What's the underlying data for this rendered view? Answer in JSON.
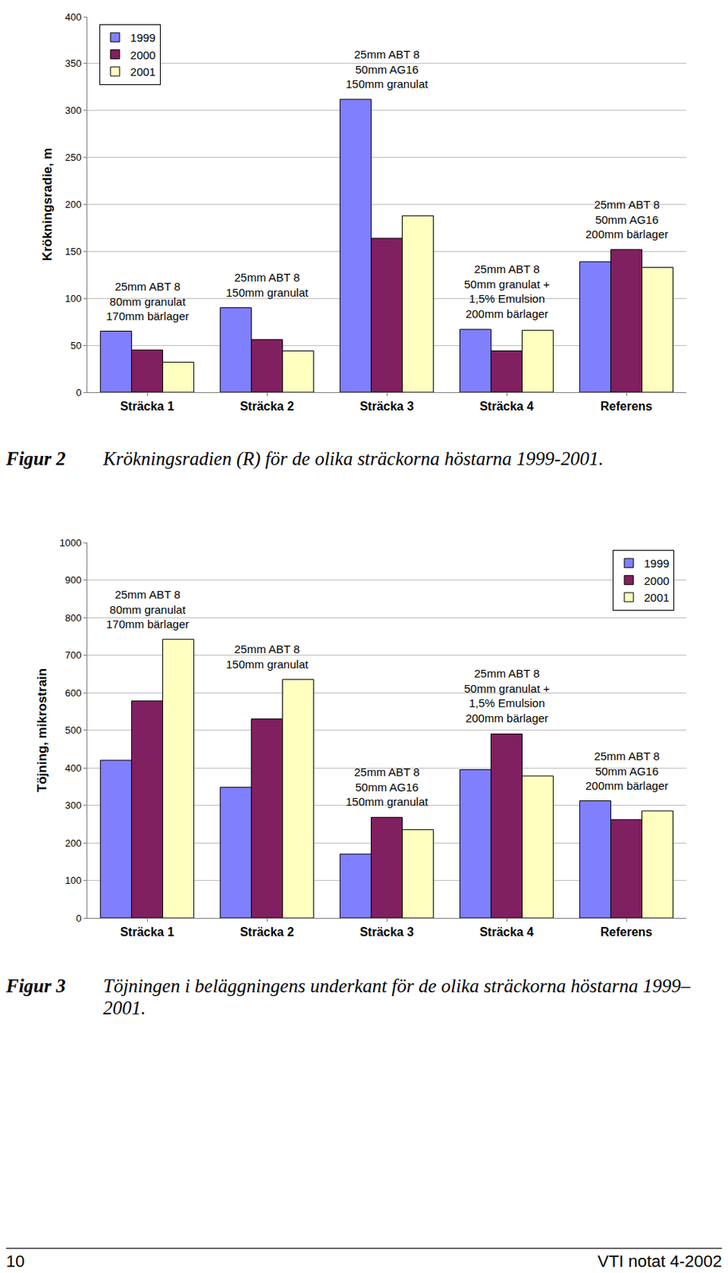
{
  "chart_data": [
    {
      "type": "bar",
      "y_label": "Krökningsradie, m",
      "categories": [
        "Sträcka 1",
        "Sträcka 2",
        "Sträcka 3",
        "Sträcka 4",
        "Referens"
      ],
      "series": [
        {
          "name": "1999",
          "color": "#8080ff",
          "values": [
            65,
            90,
            312,
            67,
            139
          ]
        },
        {
          "name": "2000",
          "color": "#802060",
          "values": [
            45,
            56,
            164,
            44,
            152
          ]
        },
        {
          "name": "2001",
          "color": "#ffffc0",
          "values": [
            32,
            44,
            188,
            66,
            133
          ]
        }
      ],
      "ylim": [
        0,
        400
      ],
      "yticks": [
        0,
        50,
        100,
        150,
        200,
        250,
        300,
        350,
        400
      ],
      "grid": true,
      "legend": "top-left",
      "annotations": [
        {
          "category": "Sträcka 1",
          "lines": [
            "25mm ABT 8",
            "80mm granulat",
            "170mm bärlager"
          ]
        },
        {
          "category": "Sträcka 2",
          "lines": [
            "25mm ABT 8",
            "150mm granulat"
          ]
        },
        {
          "category": "Sträcka 3",
          "lines": [
            "25mm ABT 8",
            "50mm AG16",
            "150mm granulat"
          ]
        },
        {
          "category": "Sträcka 4",
          "lines": [
            "25mm ABT 8",
            "50mm granulat +",
            "1,5% Emulsion",
            "200mm bärlager"
          ]
        },
        {
          "category": "Referens",
          "lines": [
            "25mm ABT 8",
            "50mm AG16",
            "200mm bärlager"
          ]
        }
      ]
    },
    {
      "type": "bar",
      "y_label": "Töjning, mikrostrain",
      "categories": [
        "Sträcka 1",
        "Sträcka 2",
        "Sträcka 3",
        "Sträcka 4",
        "Referens"
      ],
      "series": [
        {
          "name": "1999",
          "color": "#8080ff",
          "values": [
            420,
            348,
            170,
            395,
            312
          ]
        },
        {
          "name": "2000",
          "color": "#802060",
          "values": [
            578,
            530,
            268,
            490,
            262
          ]
        },
        {
          "name": "2001",
          "color": "#ffffc0",
          "values": [
            742,
            635,
            235,
            378,
            285
          ]
        }
      ],
      "ylim": [
        0,
        1000
      ],
      "yticks": [
        0,
        100,
        200,
        300,
        400,
        500,
        600,
        700,
        800,
        900,
        1000
      ],
      "grid": true,
      "legend": "top-right",
      "annotations": [
        {
          "category": "Sträcka 1",
          "lines": [
            "25mm ABT 8",
            "80mm granulat",
            "170mm bärlager"
          ]
        },
        {
          "category": "Sträcka 2",
          "lines": [
            "25mm ABT 8",
            "150mm granulat"
          ]
        },
        {
          "category": "Sträcka 3",
          "lines": [
            "25mm ABT 8",
            "50mm AG16",
            "150mm granulat"
          ]
        },
        {
          "category": "Sträcka 4",
          "lines": [
            "25mm ABT 8",
            "50mm granulat +",
            "1,5% Emulsion",
            "200mm bärlager"
          ]
        },
        {
          "category": "Referens",
          "lines": [
            "25mm ABT 8",
            "50mm AG16",
            "200mm bärlager"
          ]
        }
      ]
    }
  ],
  "figures": [
    {
      "label": "Figur 2",
      "caption": "Krökningsradien (R) för de olika sträckorna höstarna 1999-2001."
    },
    {
      "label": "Figur 3",
      "caption": "Töjningen i beläggningens underkant för de olika sträckorna höstarna 1999–2001."
    }
  ],
  "footer": {
    "page": "10",
    "report": "VTI notat 4-2002"
  }
}
